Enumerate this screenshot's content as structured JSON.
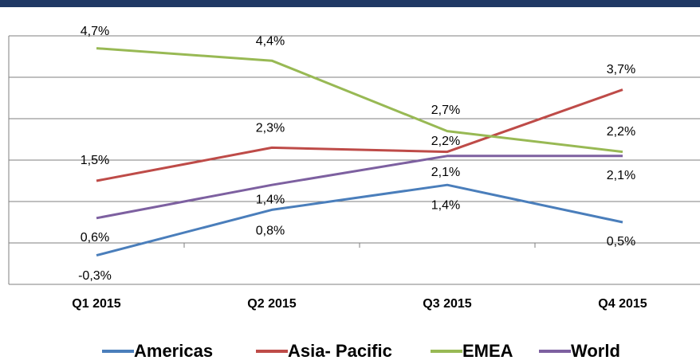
{
  "chart_data": {
    "type": "line",
    "categories": [
      "Q1  2015",
      "Q2  2015",
      "Q3  2015",
      "Q4  2015"
    ],
    "series": [
      {
        "name": "Americas",
        "color": "#4a7ebb",
        "values": [
          -0.3,
          0.8,
          1.4,
          0.5
        ],
        "value_labels": [
          "-0,3%",
          "0,8%",
          "1,4%",
          "0,5%"
        ]
      },
      {
        "name": "Asia- Pacific",
        "color": "#be4b48",
        "values": [
          1.5,
          2.3,
          2.2,
          3.7
        ],
        "value_labels": [
          "1,5%",
          "2,3%",
          "2,2%",
          "3,7%"
        ]
      },
      {
        "name": "EMEA",
        "color": "#98b954",
        "values": [
          4.7,
          4.4,
          2.7,
          2.2
        ],
        "value_labels": [
          "4,7%",
          "4,4%",
          "2,7%",
          "2,2%"
        ]
      },
      {
        "name": "World",
        "color": "#7d60a0",
        "values": [
          0.6,
          1.4,
          2.1,
          2.1
        ],
        "value_labels": [
          "0,6%",
          "1,4%",
          "2,1%",
          "2,1%"
        ]
      }
    ],
    "ylim": [
      -1,
      5
    ],
    "yticks": [
      -1,
      0,
      1,
      2,
      3,
      4,
      5
    ],
    "grid": true,
    "legend": "bottom"
  }
}
